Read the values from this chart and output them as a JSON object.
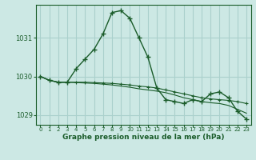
{
  "xlabel": "Graphe pression niveau de la mer (hPa)",
  "background_color": "#cce8e4",
  "grid_color": "#aad0cc",
  "line_color": "#1a5c2a",
  "hours": [
    0,
    1,
    2,
    3,
    4,
    5,
    6,
    7,
    8,
    9,
    10,
    11,
    12,
    13,
    14,
    15,
    16,
    17,
    18,
    19,
    20,
    21,
    22,
    23
  ],
  "series1": [
    1030.0,
    1029.9,
    1029.85,
    1029.85,
    1030.2,
    1030.45,
    1030.7,
    1031.1,
    1031.65,
    1031.7,
    1031.5,
    1031.0,
    1030.5,
    1029.7,
    1029.4,
    1029.35,
    1029.3,
    1029.4,
    1029.35,
    1029.55,
    1029.6,
    1029.45,
    1029.1,
    1028.9
  ],
  "series2": [
    1030.0,
    1029.9,
    1029.85,
    1029.85,
    1029.85,
    1029.85,
    1029.84,
    1029.83,
    1029.82,
    1029.8,
    1029.78,
    1029.75,
    1029.73,
    1029.7,
    1029.65,
    1029.6,
    1029.55,
    1029.5,
    1029.45,
    1029.42,
    1029.4,
    1029.38,
    1029.35,
    1029.3
  ],
  "series3": [
    1030.0,
    1029.9,
    1029.85,
    1029.85,
    1029.84,
    1029.83,
    1029.82,
    1029.8,
    1029.78,
    1029.75,
    1029.72,
    1029.68,
    1029.65,
    1029.62,
    1029.58,
    1029.52,
    1029.45,
    1029.4,
    1029.35,
    1029.32,
    1029.3,
    1029.25,
    1029.15,
    1029.05
  ],
  "ylim": [
    1028.75,
    1031.85
  ],
  "yticks": [
    1029,
    1030,
    1031
  ],
  "xticks": [
    0,
    1,
    2,
    3,
    4,
    5,
    6,
    7,
    8,
    9,
    10,
    11,
    12,
    13,
    14,
    15,
    16,
    17,
    18,
    19,
    20,
    21,
    22,
    23
  ]
}
